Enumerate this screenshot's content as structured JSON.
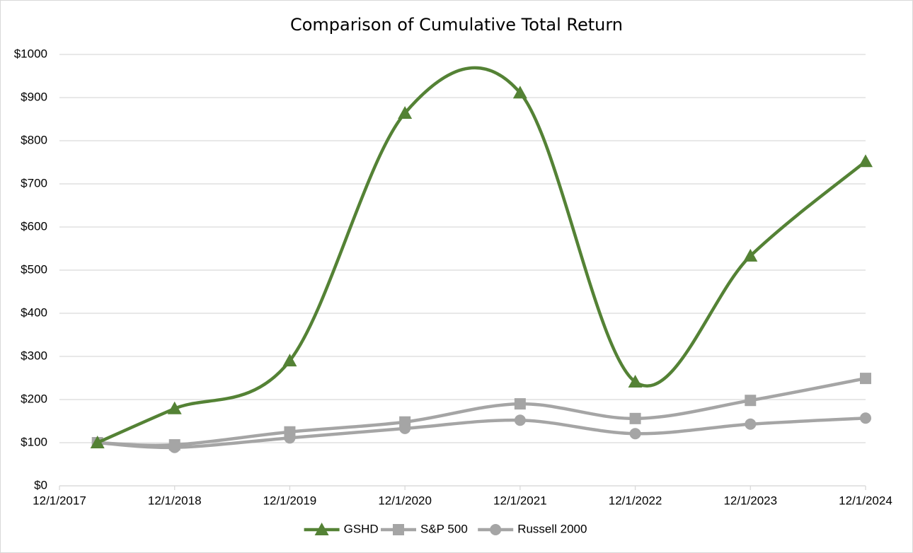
{
  "chart_data": {
    "type": "line",
    "title": "Comparison of Cumulative Total Return",
    "x": [
      2018.25,
      2018.92,
      2019.92,
      2020.92,
      2021.92,
      2022.92,
      2023.92,
      2024.92
    ],
    "xlim": [
      2017.92,
      2024.92
    ],
    "xticks": [
      {
        "value": 2017.92,
        "label": "12/1/2017"
      },
      {
        "value": 2018.92,
        "label": "12/1/2018"
      },
      {
        "value": 2019.92,
        "label": "12/1/2019"
      },
      {
        "value": 2020.92,
        "label": "12/1/2020"
      },
      {
        "value": 2021.92,
        "label": "12/1/2021"
      },
      {
        "value": 2022.92,
        "label": "12/1/2022"
      },
      {
        "value": 2023.92,
        "label": "12/1/2023"
      },
      {
        "value": 2024.92,
        "label": "12/1/2024"
      }
    ],
    "ylim": [
      0,
      1000
    ],
    "yticks": [
      {
        "value": 0,
        "label": "$0"
      },
      {
        "value": 100,
        "label": "$100"
      },
      {
        "value": 200,
        "label": "$200"
      },
      {
        "value": 300,
        "label": "$300"
      },
      {
        "value": 400,
        "label": "$400"
      },
      {
        "value": 500,
        "label": "$500"
      },
      {
        "value": 600,
        "label": "$600"
      },
      {
        "value": 700,
        "label": "$700"
      },
      {
        "value": 800,
        "label": "$800"
      },
      {
        "value": 900,
        "label": "$900"
      },
      {
        "value": 1000,
        "label": "$1000"
      }
    ],
    "grid": true,
    "smooth": true,
    "legend": "bottom",
    "series": [
      {
        "name": "GSHD",
        "color": "#548235",
        "marker": "triangle",
        "values": [
          100,
          179,
          290,
          864,
          911,
          241,
          533,
          752
        ]
      },
      {
        "name": "S&P 500",
        "color": "#a5a5a5",
        "marker": "square",
        "values": [
          100,
          95,
          125,
          148,
          190,
          156,
          198,
          249
        ]
      },
      {
        "name": "Russell 2000",
        "color": "#a5a5a5",
        "marker": "circle",
        "values": [
          100,
          89,
          111,
          133,
          152,
          121,
          143,
          157
        ]
      }
    ]
  }
}
